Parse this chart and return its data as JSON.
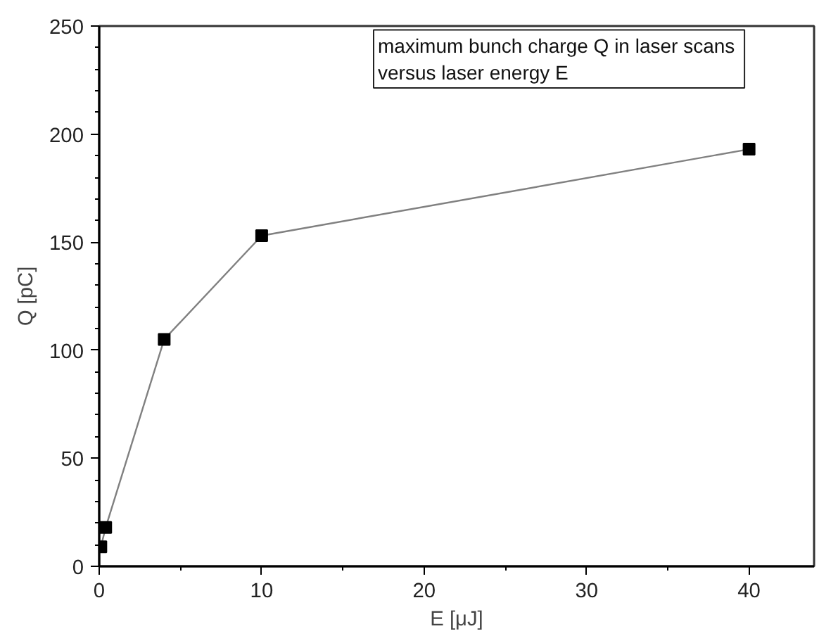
{
  "chart_data": {
    "type": "line",
    "xlabel": "E [μJ]",
    "ylabel": "Q [pC]",
    "annotations": [
      "maximum bunch charge Q  in laser scans\nversus laser energy E"
    ],
    "x": [
      0.1,
      0.4,
      4,
      10,
      40
    ],
    "series": [
      {
        "color": "#000000",
        "values": [
          9,
          18,
          105,
          153,
          193
        ]
      }
    ],
    "xlim": [
      0,
      44
    ],
    "ylim": [
      0,
      250
    ],
    "xticks": [
      0,
      {
        "value": 5,
        "label": null
      },
      10,
      {
        "value": 15,
        "label": null
      },
      20,
      {
        "value": 25,
        "label": null
      },
      30,
      {
        "value": 35,
        "label": null
      },
      40
    ],
    "yticks": [
      0,
      {
        "value": 10,
        "label": null
      },
      {
        "value": 20,
        "label": null
      },
      {
        "value": 30,
        "label": null
      },
      {
        "value": 40,
        "label": null
      },
      50,
      {
        "value": 60,
        "label": null
      },
      {
        "value": 70,
        "label": null
      },
      {
        "value": 80,
        "label": null
      },
      {
        "value": 90,
        "label": null
      },
      100,
      {
        "value": 110,
        "label": null
      },
      {
        "value": 120,
        "label": null
      },
      {
        "value": 130,
        "label": null
      },
      {
        "value": 140,
        "label": null
      },
      150,
      {
        "value": 160,
        "label": null
      },
      {
        "value": 170,
        "label": null
      },
      {
        "value": 180,
        "label": null
      },
      {
        "value": 190,
        "label": null
      },
      200,
      {
        "value": 210,
        "label": null
      },
      {
        "value": 220,
        "label": null
      },
      {
        "value": 230,
        "label": null
      },
      {
        "value": 240,
        "label": null
      },
      250
    ],
    "marker": "square",
    "line_style": "solid",
    "grid": false
  }
}
